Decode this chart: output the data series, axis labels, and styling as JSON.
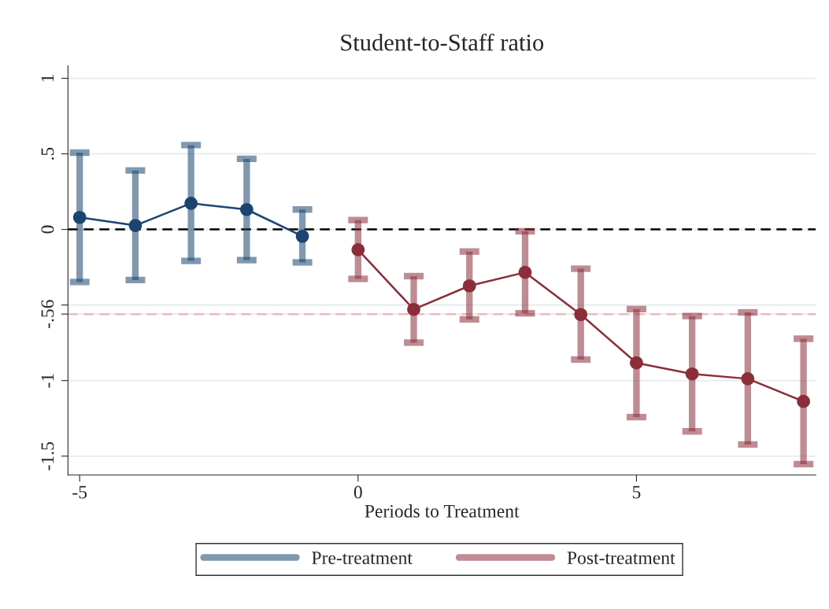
{
  "chart_data": {
    "type": "line",
    "title": "Student-to-Staff ratio",
    "xlabel": "Periods to Treatment",
    "xlim": [
      -5.21,
      8.22
    ],
    "xticks": [
      -5,
      0,
      5
    ],
    "ylim": [
      -1.625,
      1.083
    ],
    "yticks": [
      1,
      {
        "value": 0.5,
        "label": ".5"
      },
      0,
      {
        "value": -0.5,
        "label": null
      },
      {
        "value": -0.56,
        "label": "-.56"
      },
      -1,
      -1.5
    ],
    "grid": "y",
    "legend": "bottom",
    "marker": "circle",
    "line_style": "solid",
    "series": [
      {
        "name": "Pre-treatment",
        "color": "#1a4570",
        "x": [
          -5,
          -4,
          -3,
          -2,
          -1
        ],
        "values": [
          0.08,
          0.026,
          0.173,
          0.132,
          -0.045
        ],
        "errors": [
          [
            -0.348,
            0.508
          ],
          [
            -0.335,
            0.39
          ],
          [
            -0.208,
            0.558
          ],
          [
            -0.203,
            0.467
          ],
          [
            -0.218,
            0.132
          ]
        ]
      },
      {
        "name": "Post-treatment",
        "color": "#8b2e3a",
        "x": [
          0,
          1,
          2,
          3,
          4,
          5,
          6,
          7,
          8
        ],
        "values": [
          -0.134,
          -0.529,
          -0.373,
          -0.284,
          -0.563,
          -0.883,
          -0.956,
          -0.988,
          -1.138
        ],
        "errors": [
          [
            -0.327,
            0.062
          ],
          [
            -0.749,
            -0.309
          ],
          [
            -0.595,
            -0.146
          ],
          [
            -0.555,
            -0.012
          ],
          [
            -0.861,
            -0.26
          ],
          [
            -1.242,
            -0.527
          ],
          [
            -1.336,
            -0.573
          ],
          [
            -1.423,
            -0.549
          ],
          [
            -1.553,
            -0.723
          ]
        ]
      }
    ],
    "ref_lines": [
      {
        "axis": "y",
        "value": 0,
        "color": "#000000",
        "line_style": "dashed"
      },
      {
        "axis": "y",
        "value": -0.56,
        "color": "#f0b8bc",
        "line_style": "dashed"
      }
    ]
  }
}
